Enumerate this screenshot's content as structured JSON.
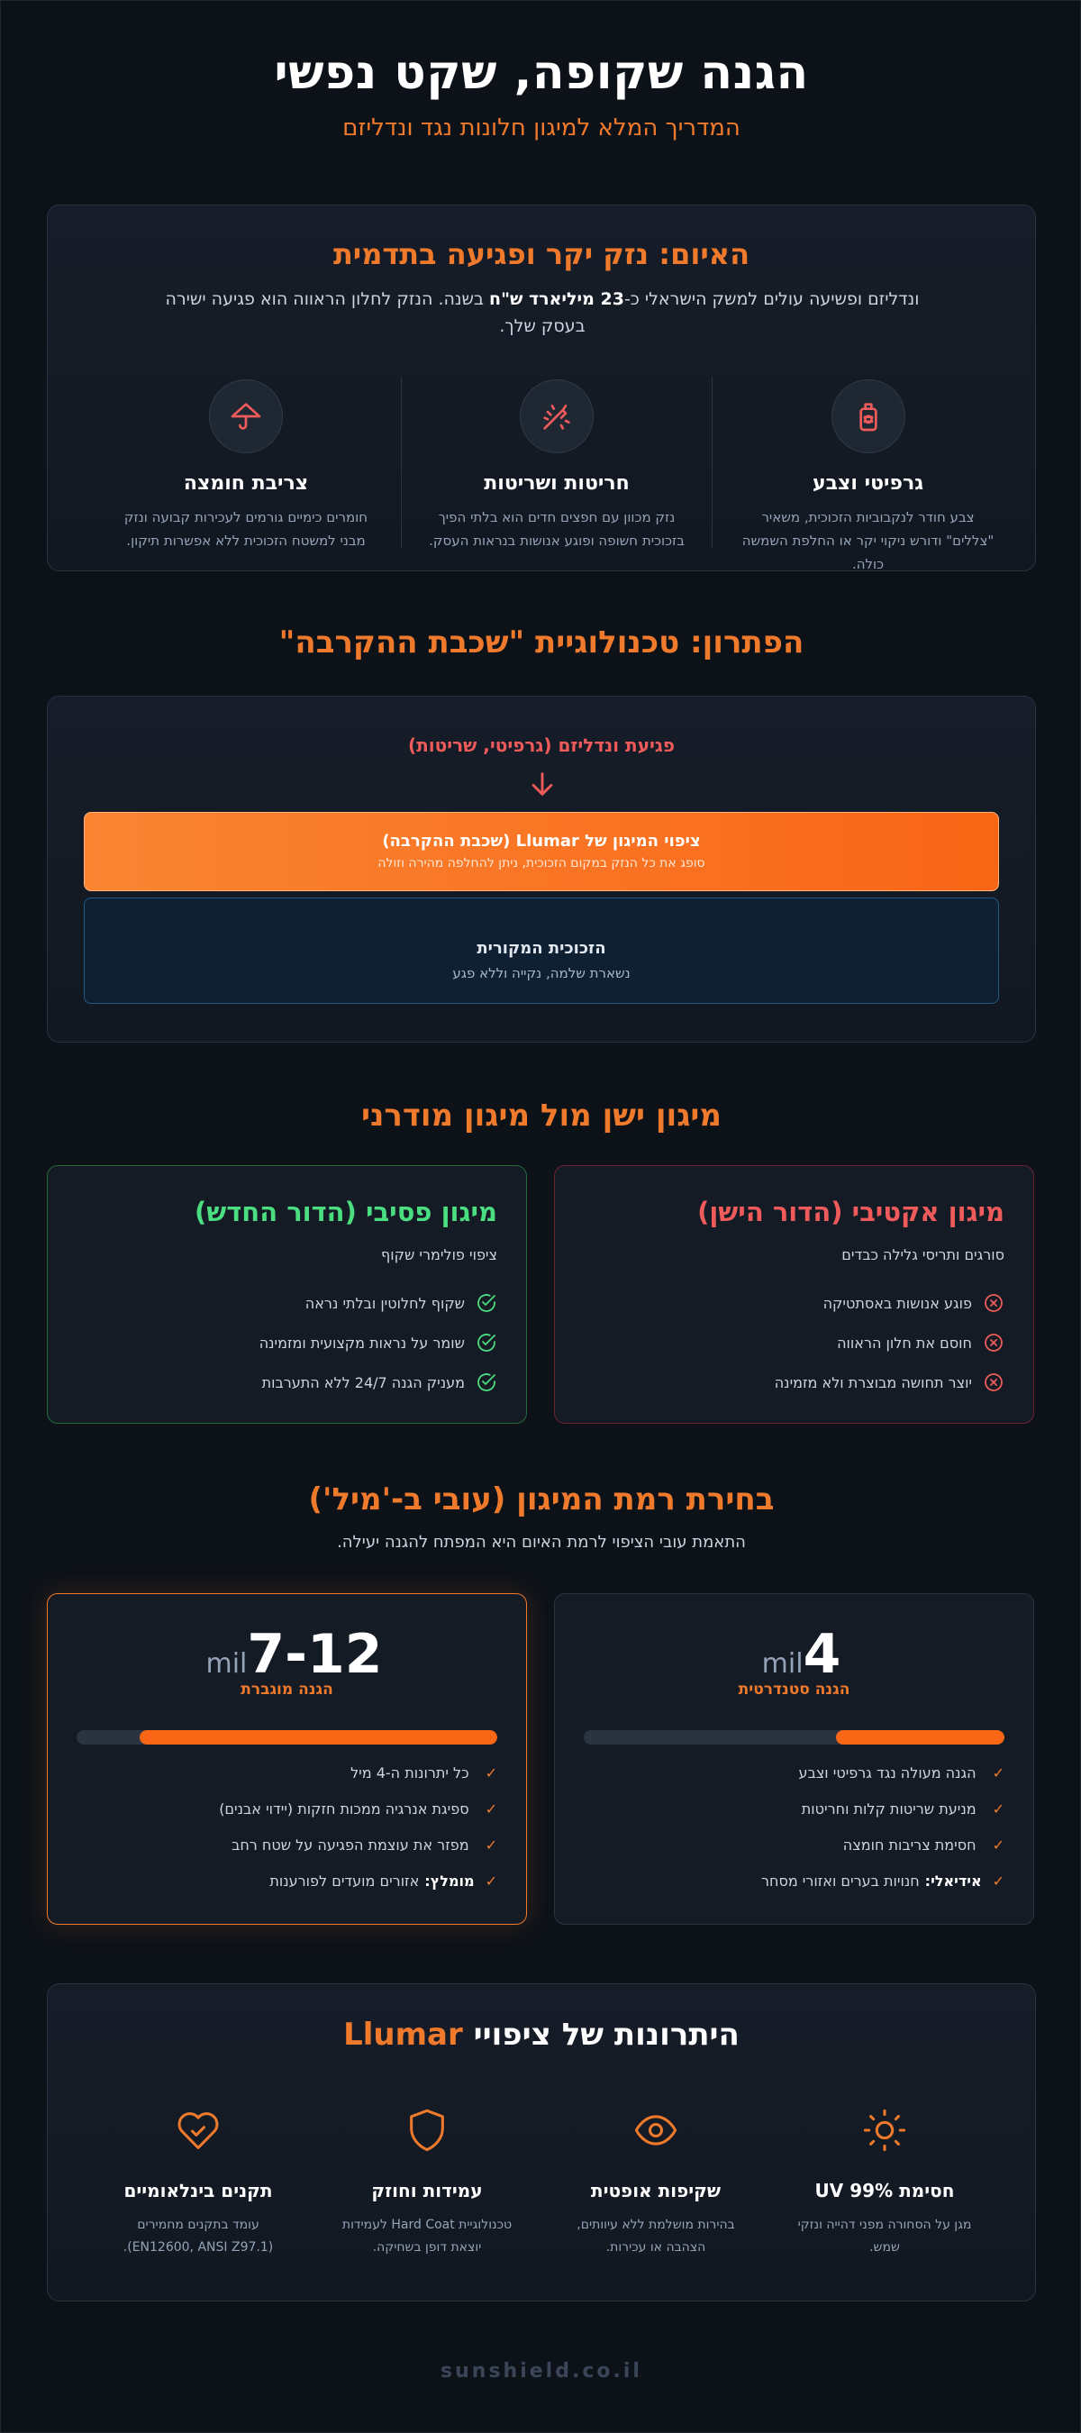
{
  "header": {
    "title": "הגנה שקופה, שקט נפשי",
    "subtitle": "המדריך המלא למיגון חלונות נגד ונדליזם"
  },
  "threat": {
    "title": "האיום: נזק יקר ופגיעה בתדמית",
    "text_before": "ונדליזם ופשיעה עולים למשק הישראלי כ-",
    "text_bold": "23 מיליארד ש\"ח",
    "text_after": " בשנה. הנזק לחלון הראווה הוא פגיעה ישירה בעסק שלך.",
    "items": [
      {
        "icon": "spray-can-icon",
        "title": "גרפיטי וצבע",
        "text": "צבע חודר לנקבוביות הזכוכית, משאיר \"צללים\" ודורש ניקוי יקר או החלפת השמשה כולה."
      },
      {
        "icon": "scratch-tool-icon",
        "title": "חריטות ושריטות",
        "text": "נזק מכוון עם חפצים חדים הוא בלתי הפיך בזכוכית חשופה ופוגע אנושות בנראות העסק."
      },
      {
        "icon": "acid-drop-icon",
        "title": "צריבת חומצה",
        "text": "חומרים כימיים גורמים לעכירות קבועה ונזק מבני למשטח הזכוכית ללא אפשרות תיקון."
      }
    ]
  },
  "solution": {
    "title": "הפתרון: טכנולוגיית \"שכבת ההקרבה\"",
    "attack_label": "פגיעת ונדליזם (גרפיטי, שריטות)",
    "film_title": "ציפוי המיגון של Llumar (שכבת ההקרבה)",
    "film_text": "סופג את כל הנזק במקום הזכוכית, ניתן להחלפה מהירה וזולה",
    "glass_title": "הזכוכית המקורית",
    "glass_text": "נשארת שלמה, נקייה וללא פגע"
  },
  "comparison": {
    "title": "מיגון ישן מול מיגון מודרני",
    "active": {
      "title": "מיגון אקטיבי (הדור הישן)",
      "desc": "סורגים ותריסי גלילה כבדים",
      "items": [
        "פוגע אנושות באסתטיקה",
        "חוסם את חלון הראווה",
        "יוצר תחושה מבוצרת ולא מזמינה"
      ]
    },
    "passive": {
      "title": "מיגון פסיבי (הדור החדש)",
      "desc": "ציפוי פולימרי שקוף",
      "items": [
        "שקוף לחלוטין ובלתי נראה",
        "שומר על נראות מקצועית ומזמינה",
        "מעניק הגנה 24/7 ללא התערבות"
      ]
    }
  },
  "mil": {
    "title": "בחירת רמת המיגון (עובי ב-'מיל')",
    "subtitle": "התאמת עובי הציפוי לרמת האיום היא המפתח להגנה יעילה.",
    "standard": {
      "value": "4",
      "unit": "mil",
      "level": "הגנה סטנדרטית",
      "fill": 0.4,
      "items": [
        {
          "bold": "",
          "text": "הגנה מעולה נגד גרפיטי וצבע"
        },
        {
          "bold": "",
          "text": "מניעת שריטות קלות וחריטות"
        },
        {
          "bold": "",
          "text": "חסימת צריבות חומצה"
        },
        {
          "bold": "אידיאלי:",
          "text": "חנויות בערים ואזורי מסחר"
        }
      ]
    },
    "advanced": {
      "value": "7-12",
      "unit": "mil",
      "level": "הגנה מוגברת",
      "fill": 0.85,
      "items": [
        {
          "bold": "",
          "text": "כל יתרונות ה-4 מיל"
        },
        {
          "bold": "",
          "text": "ספיגת אנרגיה ממכות חזקות (יידוי אבנים)"
        },
        {
          "bold": "",
          "text": "מפזר את עוצמת הפגיעה על שטח רחב"
        },
        {
          "bold": "מומלץ:",
          "text": "אזורים מועדים לפורענות"
        }
      ]
    }
  },
  "advantages": {
    "title_prefix": "היתרונות של ציפויי",
    "brand": "Llumar",
    "items": [
      {
        "icon": "sun-icon",
        "title": "חסימת 99% UV",
        "text": "מגן על הסחורה מפני דהייה ונזקי שמש."
      },
      {
        "icon": "eye-icon",
        "title": "שקיפות אופטית",
        "text": "בהירות מושלמת ללא עיוותים, הצהבה או עכירות."
      },
      {
        "icon": "shield-icon",
        "title": "עמידות וחוזק",
        "text": "טכנולוגיית Hard Coat לעמידות יוצאת דופן בשחיקה."
      },
      {
        "icon": "heart-check-icon",
        "title": "תקנים בינלאומיים",
        "text": "עומד בתקנים מחמירים (EN12600, ANSI Z97.1)."
      }
    ]
  },
  "footer": {
    "site": "sunshield.co.il"
  },
  "colors": {
    "accent": "#f07a2c",
    "danger": "#ef5b5b",
    "success": "#4ade80",
    "background": "#0d1219"
  }
}
